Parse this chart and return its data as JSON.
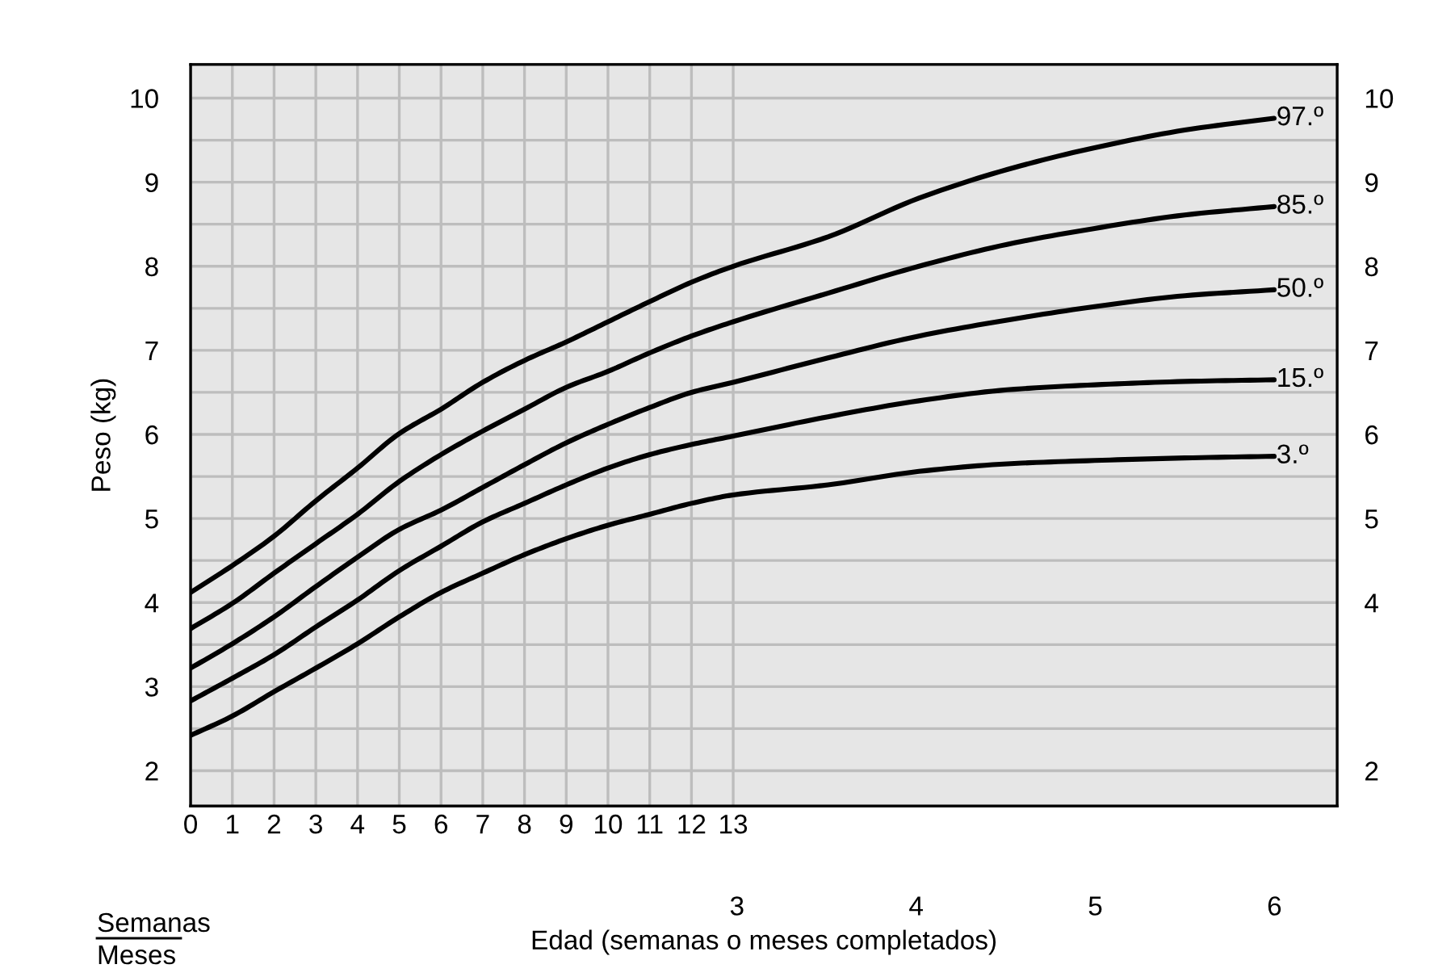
{
  "chart_data": {
    "type": "line",
    "xlabel": null,
    "ylabel": "Peso (kg)",
    "x2label": "Edad (semanas o meses completados)",
    "xlim": [
      0,
      27.47
    ],
    "xticks": [
      0,
      1,
      2,
      3,
      4,
      5,
      6,
      7,
      8,
      9,
      10,
      11,
      12,
      13
    ],
    "x2lim": [
      -0.05,
      6.35
    ],
    "x2ticks": [
      3,
      4,
      5,
      6
    ],
    "ylim": [
      1.58,
      10.4
    ],
    "yticks": [
      2,
      {
        "value": 2.5,
        "label": null
      },
      3,
      {
        "value": 3.5,
        "label": null
      },
      4,
      {
        "value": 4.5,
        "label": null
      },
      5,
      {
        "value": 5.5,
        "label": null
      },
      6,
      {
        "value": 6.5,
        "label": null
      },
      7,
      {
        "value": 7.5,
        "label": null
      },
      8,
      {
        "value": 8.5,
        "label": null
      },
      9,
      {
        "value": 9.5,
        "label": null
      },
      10
    ],
    "y2lim": [
      1.58,
      10.4
    ],
    "y2ticks": [
      2,
      4,
      5,
      6,
      7,
      8,
      9,
      10
    ],
    "x": [
      0,
      1,
      2,
      3,
      4,
      5,
      6,
      7,
      8,
      9,
      10,
      11,
      12,
      13,
      15.27,
      17.45,
      19.56,
      21.66,
      23.82,
      25.96
    ],
    "series": [
      {
        "name": "97.º",
        "color": "#000000",
        "values": [
          4.12,
          4.44,
          4.79,
          5.21,
          5.6,
          6.01,
          6.3,
          6.62,
          6.88,
          7.1,
          7.34,
          7.58,
          7.81,
          8.0,
          8.35,
          8.81,
          9.15,
          9.41,
          9.62,
          9.76
        ]
      },
      {
        "name": "85.º",
        "color": "#000000",
        "values": [
          3.69,
          3.99,
          4.35,
          4.7,
          5.05,
          5.44,
          5.76,
          6.04,
          6.3,
          6.56,
          6.75,
          6.97,
          7.17,
          7.34,
          7.68,
          8.0,
          8.26,
          8.45,
          8.61,
          8.71
        ]
      },
      {
        "name": "50.º",
        "color": "#000000",
        "values": [
          3.22,
          3.51,
          3.83,
          4.19,
          4.54,
          4.87,
          5.1,
          5.37,
          5.64,
          5.9,
          6.12,
          6.32,
          6.5,
          6.62,
          6.91,
          7.17,
          7.36,
          7.52,
          7.65,
          7.72
        ]
      },
      {
        "name": "15.º",
        "color": "#000000",
        "values": [
          2.83,
          3.1,
          3.38,
          3.71,
          4.03,
          4.38,
          4.67,
          4.96,
          5.18,
          5.4,
          5.6,
          5.76,
          5.88,
          5.98,
          6.21,
          6.4,
          6.53,
          6.59,
          6.63,
          6.65
        ]
      },
      {
        "name": "3.º",
        "color": "#000000",
        "values": [
          2.42,
          2.65,
          2.94,
          3.22,
          3.51,
          3.83,
          4.12,
          4.35,
          4.57,
          4.76,
          4.92,
          5.05,
          5.18,
          5.28,
          5.4,
          5.56,
          5.65,
          5.69,
          5.72,
          5.74
        ]
      }
    ],
    "annotations": [
      "Semanas",
      "Meses"
    ],
    "grid": true,
    "legend": false,
    "marker": "none",
    "line_style": "solid"
  }
}
